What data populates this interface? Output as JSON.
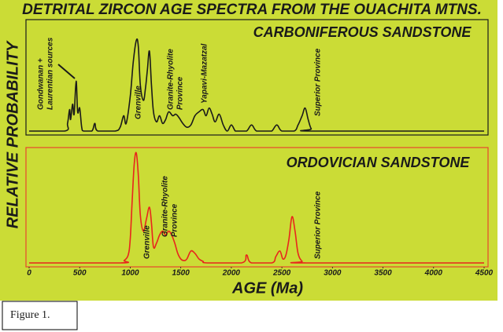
{
  "figure": {
    "title": "DETRITAL ZIRCON AGE SPECTRA FROM THE OUACHITA MTNS.",
    "ylabel": "RELATIVE PROBABILITY",
    "caption": "Figure 1."
  },
  "chart_data": [
    {
      "type": "line",
      "title": "CARBONIFEROUS SANDSTONE",
      "color": "#1a1a1a",
      "border": "#1a1a1a",
      "xlim": [
        0,
        4500
      ],
      "ylim": [
        0,
        140
      ],
      "x": [
        0,
        350,
        380,
        400,
        410,
        430,
        445,
        465,
        480,
        500,
        520,
        540,
        620,
        650,
        680,
        850,
        900,
        935,
        960,
        1000,
        1030,
        1060,
        1080,
        1100,
        1130,
        1150,
        1170,
        1190,
        1210,
        1230,
        1260,
        1290,
        1320,
        1350,
        1380,
        1420,
        1450,
        1480,
        1520,
        1560,
        1600,
        1640,
        1680,
        1720,
        1750,
        1780,
        1810,
        1840,
        1880,
        1920,
        1960,
        2000,
        2040,
        2080,
        2150,
        2200,
        2250,
        2350,
        2400,
        2450,
        2500,
        2620,
        2660,
        2700,
        2730,
        2760,
        2790,
        2830,
        4500
      ],
      "values": [
        0,
        0,
        10,
        28,
        15,
        35,
        22,
        65,
        25,
        30,
        5,
        0,
        0,
        10,
        0,
        0,
        5,
        20,
        10,
        45,
        90,
        118,
        110,
        60,
        40,
        55,
        80,
        104,
        60,
        25,
        12,
        20,
        10,
        15,
        25,
        20,
        22,
        18,
        10,
        5,
        8,
        20,
        25,
        28,
        20,
        30,
        22,
        12,
        22,
        8,
        0,
        8,
        0,
        0,
        0,
        8,
        0,
        0,
        0,
        8,
        0,
        0,
        8,
        20,
        30,
        15,
        3,
        0,
        0
      ],
      "annotations": [
        [
          "Gondwanan +",
          "Laurentian sources"
        ],
        [
          "Grenville"
        ],
        [
          "Granite-Rhyolite",
          "Province"
        ],
        [
          "Yapavi-Mazatzal"
        ],
        [
          "Superior Province"
        ]
      ]
    },
    {
      "type": "line",
      "title": "ORDOVICIAN SANDSTONE",
      "color": "#e8251c",
      "border": "#e8452c",
      "xlim": [
        0,
        4500
      ],
      "ylim": [
        0,
        140
      ],
      "xlabel": "AGE (Ma)",
      "xticks": [
        0,
        500,
        1000,
        1500,
        2000,
        2500,
        3000,
        3500,
        4000,
        4500
      ],
      "x": [
        0,
        900,
        940,
        980,
        1000,
        1020,
        1040,
        1060,
        1080,
        1100,
        1130,
        1160,
        1190,
        1210,
        1230,
        1260,
        1290,
        1320,
        1350,
        1380,
        1410,
        1440,
        1470,
        1500,
        1530,
        1560,
        1600,
        1640,
        1680,
        1720,
        1760,
        2100,
        2150,
        2200,
        2400,
        2440,
        2480,
        2510,
        2540,
        2570,
        2600,
        2630,
        2660,
        2700,
        2740,
        4500
      ],
      "values": [
        0,
        0,
        3,
        10,
        30,
        80,
        125,
        138,
        110,
        60,
        40,
        55,
        70,
        50,
        20,
        25,
        35,
        40,
        35,
        40,
        35,
        25,
        12,
        5,
        3,
        5,
        15,
        12,
        5,
        2,
        0,
        0,
        10,
        0,
        0,
        8,
        15,
        5,
        10,
        30,
        58,
        40,
        12,
        2,
        0,
        0
      ],
      "annotations": [
        [
          "Grenville"
        ],
        [
          "Granite-Rhyolite",
          "Province"
        ],
        [
          "Superior Province"
        ]
      ]
    }
  ]
}
